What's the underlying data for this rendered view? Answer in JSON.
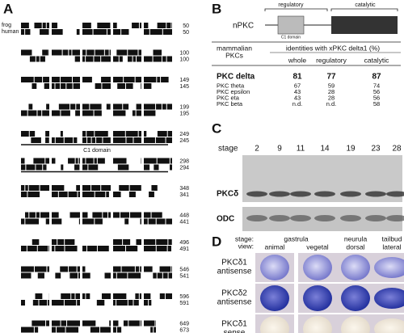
{
  "panel_a": {
    "label": "A",
    "species": [
      "frog",
      "human"
    ],
    "domain_label": "C1 domain",
    "row_numbers": [
      [
        "50",
        "50"
      ],
      [
        "100",
        "100"
      ],
      [
        "149",
        "145"
      ],
      [
        "199",
        "195"
      ],
      [
        "249",
        "245"
      ],
      [
        "298",
        "294"
      ],
      [
        "348",
        "341"
      ],
      [
        "448",
        "441"
      ],
      [
        "496",
        "491"
      ],
      [
        "546",
        "541"
      ],
      [
        "596",
        "591"
      ],
      [
        "649",
        "673"
      ]
    ]
  },
  "panel_b": {
    "label": "B",
    "protein": "nPKC",
    "regulatory": "regulatory",
    "catalytic": "catalytic",
    "domain_label": "C1 domain",
    "table": {
      "header": [
        "mammalian",
        "PKCs"
      ],
      "group_header": "identities with xPKC delta1 (%)",
      "columns": [
        "whole",
        "regulatory",
        "catalytic"
      ],
      "rows": [
        [
          "PKC delta",
          "81",
          "77",
          "87"
        ],
        [
          "PKC theta",
          "67",
          "59",
          "74"
        ],
        [
          "PKC epsilon",
          "43",
          "28",
          "56"
        ],
        [
          "PKC eta",
          "43",
          "28",
          "56"
        ],
        [
          "PKC beta",
          "n.d.",
          "n.d.",
          "58"
        ]
      ]
    }
  },
  "panel_c": {
    "label": "C",
    "stage_label": "stage",
    "stages": [
      "2",
      "9",
      "11",
      "14",
      "19",
      "23",
      "28"
    ],
    "blots": [
      "PKCδ",
      "ODC"
    ]
  },
  "panel_d": {
    "label": "D",
    "stage_label": "stage:",
    "view_label": "view:",
    "columns": [
      {
        "stage": "gastrula",
        "views": [
          "animal",
          "vegetal"
        ]
      },
      {
        "stage": "neurula",
        "views": [
          "dorsal"
        ]
      },
      {
        "stage": "tailbud",
        "views": [
          "lateral"
        ]
      }
    ],
    "rows": [
      [
        "PKCδ1",
        "antisense"
      ],
      [
        "PKCδ2",
        "antisense"
      ],
      [
        "PKCδ1",
        "sense"
      ]
    ]
  }
}
